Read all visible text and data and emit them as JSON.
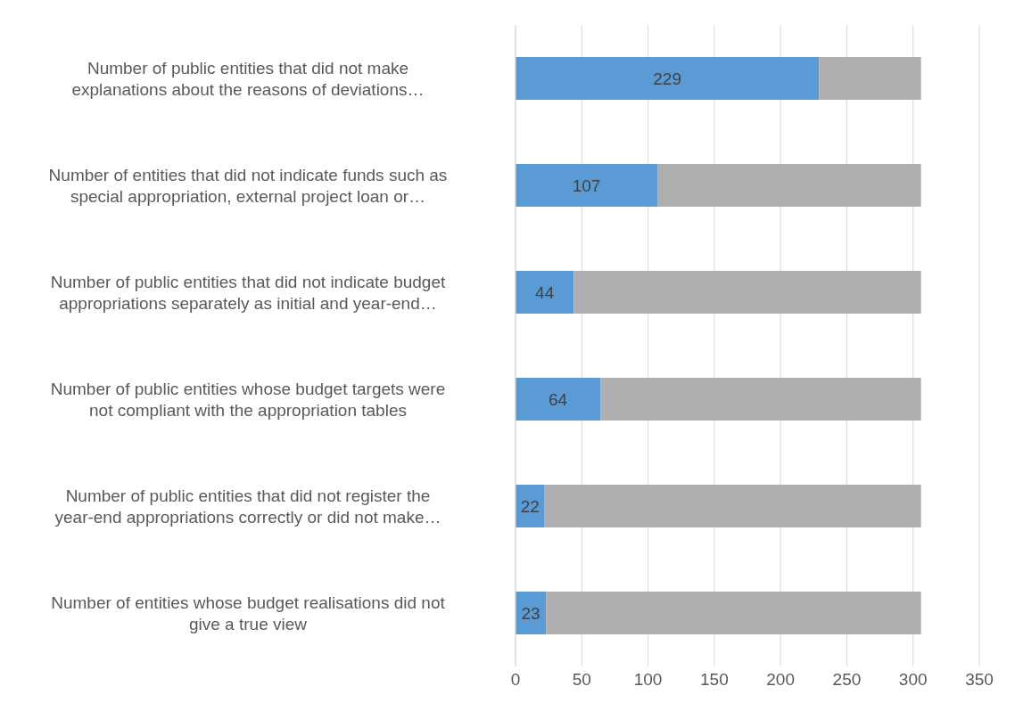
{
  "chart_data": {
    "type": "bar",
    "orientation": "horizontal",
    "stacked": true,
    "categories": [
      "Number of public entities that did not make explanations about the reasons of deviations…",
      "Number of entities that did not indicate funds such as special appropriation, external project loan or…",
      "Number of public entities that did not indicate budget appropriations separately as initial and year-end…",
      "Number of public entities whose budget targets were not compliant with the appropriation tables",
      "Number of public entities that did not register the year-end appropriations correctly or did not make…",
      "Number of entities whose budget realisations did not give a true view"
    ],
    "series": [
      {
        "color": "#5b9bd5",
        "values": [
          229,
          107,
          44,
          64,
          22,
          23
        ],
        "value_labels": [
          "229",
          "107",
          "44",
          "64",
          "22",
          "23"
        ]
      },
      {
        "color": "#afafb2",
        "values": [
          77,
          199,
          262,
          242,
          284,
          283
        ]
      }
    ],
    "xlim": [
      0,
      350
    ],
    "xticks": [
      0,
      50,
      100,
      150,
      200,
      250,
      300,
      350
    ],
    "grid": "x",
    "legend": false
  }
}
